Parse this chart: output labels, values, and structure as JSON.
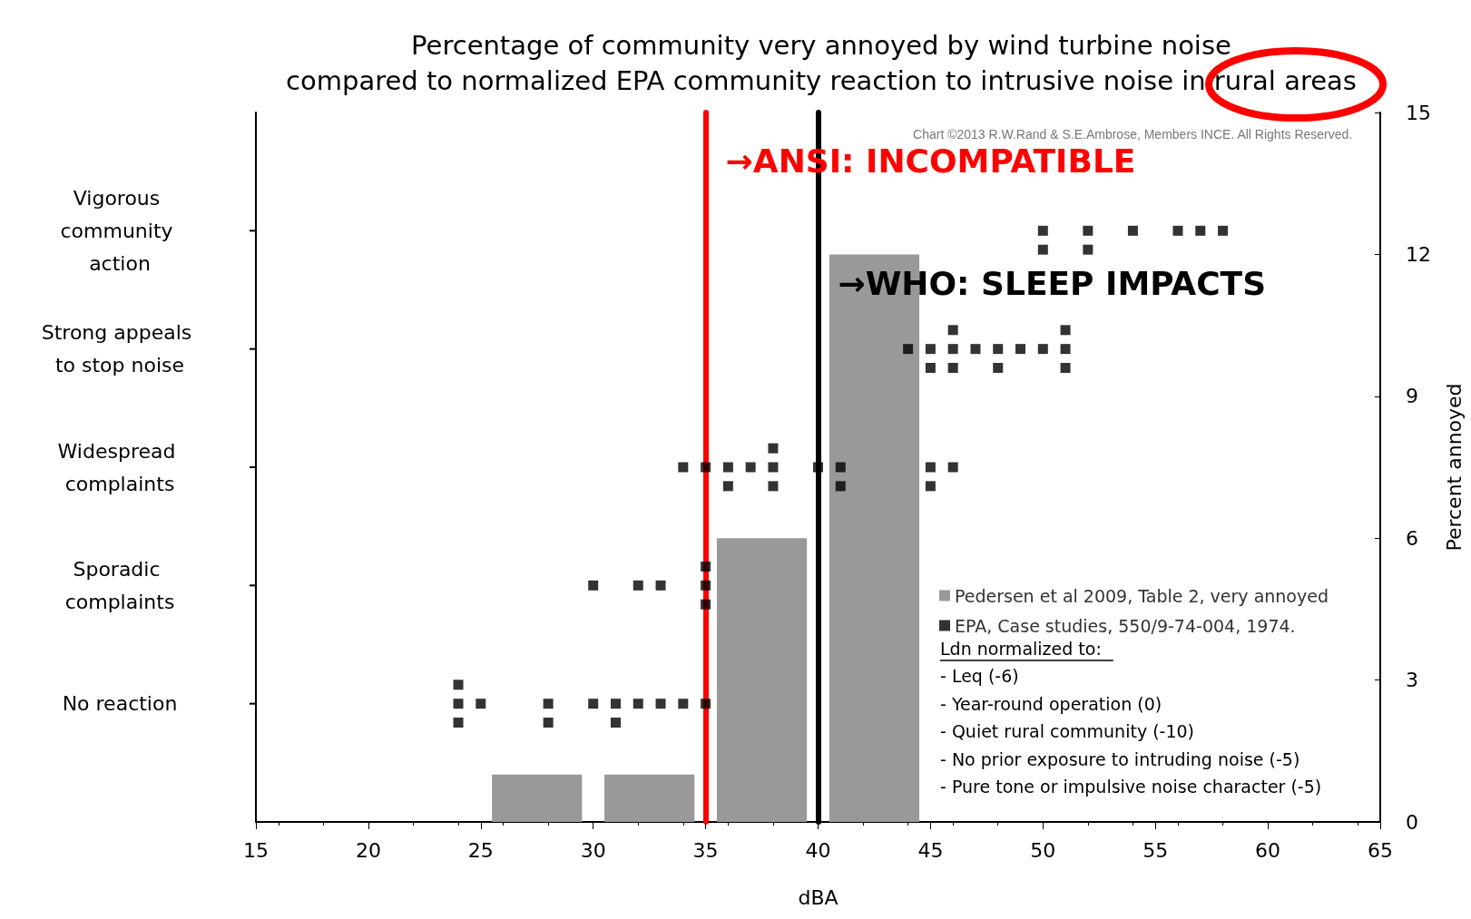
{
  "chart_data": {
    "type": "scatter",
    "title": "Percentage of community very annoyed by wind turbine noise",
    "subtitle": "compared to normalized EPA community reaction to intrusive noise in rural areas",
    "xlabel": "dBA",
    "y2label": "Percent annoyed",
    "xlim": [
      15,
      65
    ],
    "xticks": [
      15,
      20,
      25,
      30,
      35,
      40,
      45,
      50,
      55,
      60,
      65
    ],
    "y2lim": [
      0,
      15
    ],
    "y2ticks": [
      0,
      3,
      6,
      9,
      12,
      15
    ],
    "grid": false,
    "legend": "bottom right",
    "marker": "square",
    "series": [
      {
        "name": "Pedersen et al 2009, Table 2, very annoyed",
        "type": "bar",
        "axis": "y2",
        "color": "#999999",
        "x": [
          27.5,
          32.5,
          37.5,
          42.5
        ],
        "values": [
          1,
          1,
          6,
          12
        ]
      },
      {
        "name": "EPA, Case studies, 550/9-74-004, 1974.",
        "axis": "y2",
        "color": "#000000",
        "x": [
          24,
          24,
          24,
          25,
          28,
          28,
          30,
          31,
          31,
          32,
          33,
          34,
          35,
          30,
          32,
          33,
          35,
          35,
          35,
          34,
          35,
          36,
          36,
          37,
          38,
          38,
          38,
          40,
          41,
          41,
          45,
          45,
          46,
          44,
          45,
          45,
          46,
          46,
          46,
          47,
          48,
          48,
          49,
          50,
          51,
          51,
          51,
          50,
          50,
          52,
          52,
          54,
          56,
          57,
          58
        ],
        "values": [
          2.9,
          2.5,
          2.1,
          2.5,
          2.5,
          2.1,
          2.5,
          2.5,
          2.1,
          2.5,
          2.5,
          2.5,
          2.5,
          5,
          5,
          5,
          5.4,
          5,
          4.6,
          7.5,
          7.5,
          7.5,
          7.1,
          7.5,
          7.9,
          7.5,
          7.1,
          7.5,
          7.5,
          7.1,
          7.5,
          7.1,
          7.5,
          10,
          10,
          9.6,
          10.4,
          10,
          9.6,
          10,
          10,
          9.6,
          10,
          10,
          10.4,
          10,
          9.6,
          12.5,
          12.1,
          12.5,
          12.1,
          12.5,
          12.5,
          12.5,
          12.5
        ]
      }
    ],
    "ref_lines": [
      {
        "axis": "x",
        "value": 35,
        "label": "→ANSI: INCOMPATIBLE",
        "color": "#ff0000"
      },
      {
        "axis": "x",
        "value": 40,
        "label": "→WHO: SLEEP IMPACTS",
        "color": "#000000"
      }
    ],
    "annotations": [
      "Chart ©2013 R.W.Rand & S.E.Ambrose, Members INCE. All Rights Reserved.",
      "Ldn normalized to:",
      "- Leq (-6)",
      "- Year-round operation (0)",
      "- Quiet rural community (-10)",
      "- No prior exposure to intruding noise (-5)",
      "- Pure tone or impulsive noise character (-5)",
      "No reaction",
      "Sporadic complaints",
      "Widespread complaints",
      "Strong appeals to stop noise",
      "Vigorous community action"
    ]
  }
}
